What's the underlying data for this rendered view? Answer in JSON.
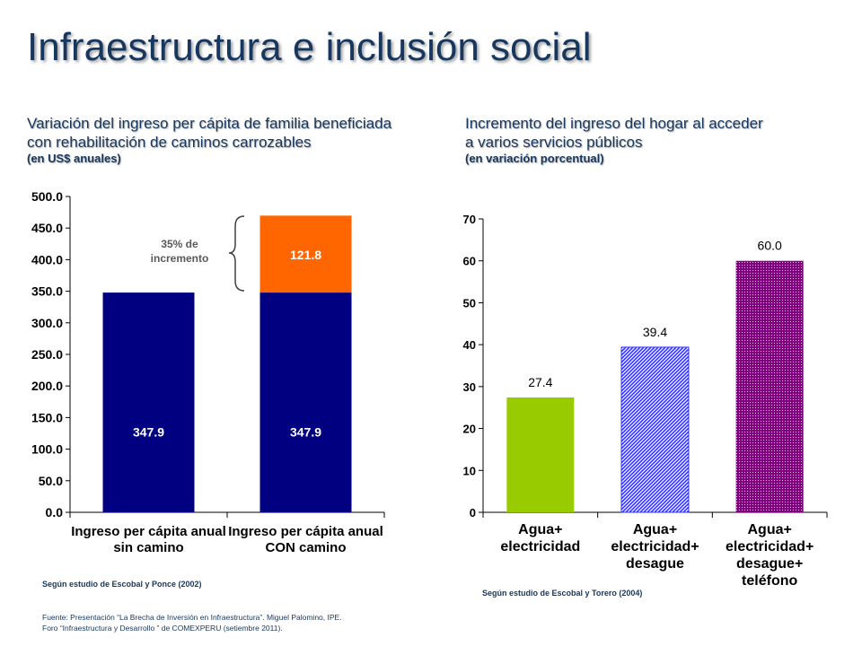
{
  "title": "Infraestructura e inclusión social",
  "left_subtitle": {
    "line1": "Variación del ingreso per cápita de familia beneficiada",
    "line2": "con rehabilitación de caminos carrozables",
    "unit": "(en US$ anuales)"
  },
  "right_subtitle": {
    "line1": "Incremento del ingreso del hogar al acceder",
    "line2": "a varios servicios públicos",
    "unit": "(en variación porcentual)"
  },
  "annotation": {
    "line1": "35% de",
    "line2": "incremento"
  },
  "left_source": "Según estudio de Escobal y Ponce (2002)",
  "right_source": "Según estudio de Escobal y Torero (2004)",
  "footer": {
    "line1": "Fuente: Presentación “La Brecha de Inversión en Infraestructura”. Miguel Palomino, IPE.",
    "line2": "Foro “Infraestructura y Desarrollo ” de COMEXPERU (setiembre 2011)."
  },
  "colors": {
    "title": "#17375e",
    "navy": "#000080",
    "orange": "#ff6600",
    "green": "#99cc00",
    "blue_hatch": "#3333ff",
    "purple_dots": "#800080"
  },
  "chart_data": [
    {
      "type": "bar",
      "stacked": true,
      "categories": [
        "Ingreso per cápita anual sin camino",
        "Ingreso per cápita anual CON camino"
      ],
      "category_lines": [
        [
          "Ingreso per cápita anual",
          "sin camino"
        ],
        [
          "Ingreso per cápita anual",
          "CON camino"
        ]
      ],
      "series": [
        {
          "values": [
            347.9,
            347.9
          ],
          "labels": [
            "347.9",
            "347.9"
          ],
          "color": "#000080"
        },
        {
          "values": [
            0,
            121.8
          ],
          "labels": [
            "",
            "121.8"
          ],
          "color": "#ff6600"
        }
      ],
      "ylim": [
        0,
        500
      ],
      "yticks": [
        0,
        50,
        100,
        150,
        200,
        250,
        300,
        350,
        400,
        450,
        500
      ],
      "ytick_labels": [
        "0.0",
        "50.0",
        "100.0",
        "150.0",
        "200.0",
        "250.0",
        "300.0",
        "350.0",
        "400.0",
        "450.0",
        "500.0"
      ],
      "grid": false
    },
    {
      "type": "bar",
      "categories": [
        "Agua+ electricidad",
        "Agua+ electricidad+ desague",
        "Agua+ electricidad+ desague+ teléfono"
      ],
      "category_lines": [
        [
          "Agua+",
          "electricidad"
        ],
        [
          "Agua+",
          "electricidad+",
          "desague"
        ],
        [
          "Agua+",
          "electricidad+",
          "desague+",
          "teléfono"
        ]
      ],
      "values": [
        27.4,
        39.4,
        60.0
      ],
      "labels": [
        "27.4",
        "39.4",
        "60.0"
      ],
      "colors": [
        "#99cc00",
        "#3333ff",
        "#800080"
      ],
      "fills": [
        "solid",
        "hatch",
        "dots"
      ],
      "ylim": [
        0,
        70
      ],
      "yticks": [
        0,
        10,
        20,
        30,
        40,
        50,
        60,
        70
      ],
      "ytick_labels": [
        "0",
        "10",
        "20",
        "30",
        "40",
        "50",
        "60",
        "70"
      ],
      "grid": false
    }
  ]
}
